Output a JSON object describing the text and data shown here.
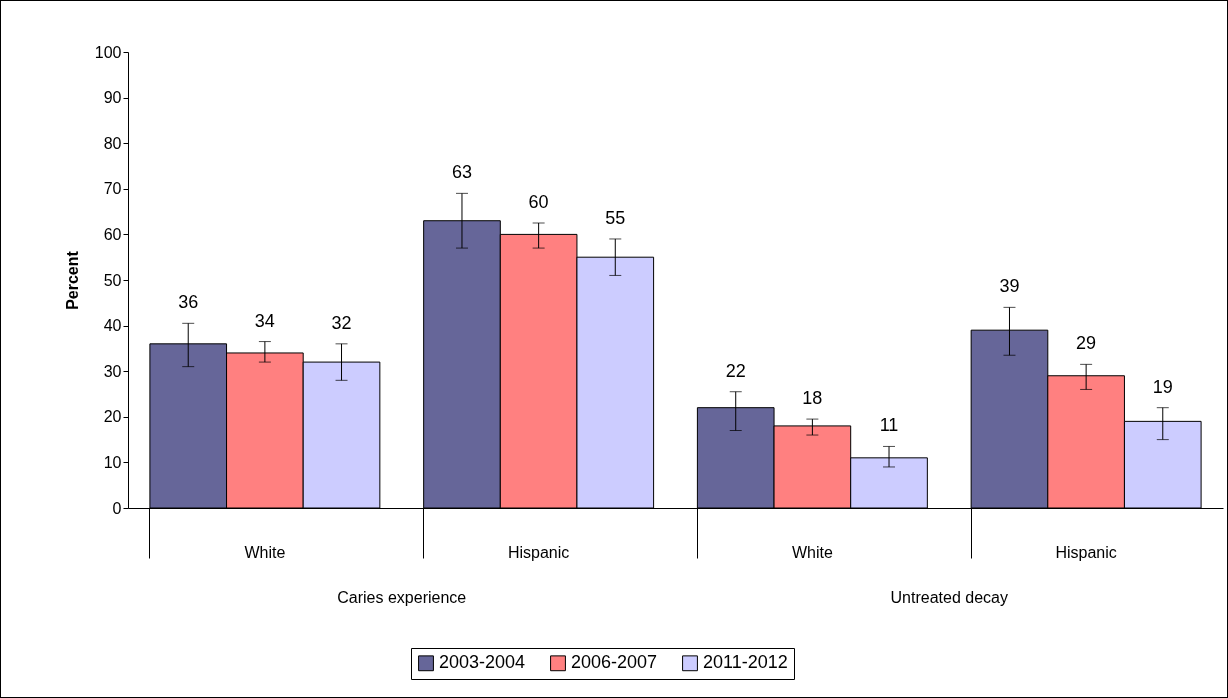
{
  "chart_data": {
    "type": "bar",
    "ylabel": "Percent",
    "categories": [
      "White",
      "Hispanic",
      "White",
      "Hispanic"
    ],
    "annotations": [
      "Caries experience",
      "Untreated decay"
    ],
    "series": [
      {
        "name": "2003-2004",
        "color": "#666699",
        "values": [
          36,
          63,
          22,
          39
        ],
        "errors": [
          [
            31,
            40.5
          ],
          [
            57,
            69
          ],
          [
            17,
            25.5
          ],
          [
            33.5,
            44
          ]
        ]
      },
      {
        "name": "2006-2007",
        "color": "#ff8080",
        "values": [
          34,
          60,
          18,
          29
        ],
        "errors": [
          [
            32,
            36.5
          ],
          [
            57,
            62.5
          ],
          [
            16,
            19.5
          ],
          [
            26,
            31.5
          ]
        ]
      },
      {
        "name": "2011-2012",
        "color": "#ccccff",
        "values": [
          32,
          55,
          11,
          19
        ],
        "errors": [
          [
            28,
            36
          ],
          [
            51,
            59
          ],
          [
            9,
            13.5
          ],
          [
            15,
            22
          ]
        ]
      }
    ],
    "ylim": [
      0,
      100
    ],
    "yticks": [
      0,
      10,
      20,
      30,
      40,
      50,
      60,
      70,
      80,
      90,
      100
    ],
    "grid": false,
    "legend": "bottom",
    "data_labels": true
  }
}
